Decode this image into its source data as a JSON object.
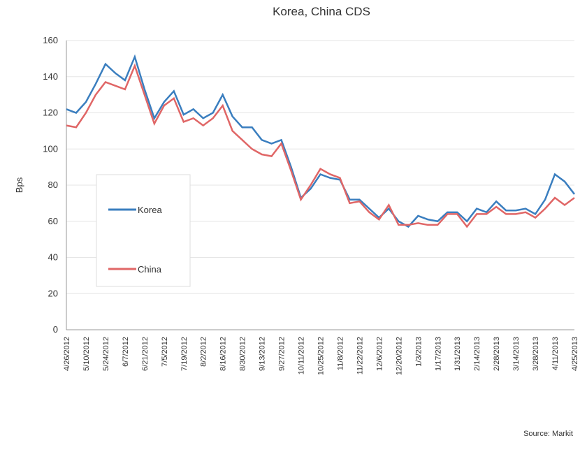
{
  "chart_data": {
    "type": "line",
    "title": "Korea, China CDS",
    "y_label": "Bps",
    "source": "Source: Markit",
    "categories": [
      "4/26/2012",
      null,
      "5/10/2012",
      null,
      "5/24/2012",
      null,
      "6/7/2012",
      null,
      "6/21/2012",
      null,
      "7/5/2012",
      null,
      "7/19/2012",
      null,
      "8/2/2012",
      null,
      "8/16/2012",
      null,
      "8/30/2012",
      null,
      "9/13/2012",
      null,
      "9/27/2012",
      null,
      "10/11/2012",
      null,
      "10/25/2012",
      null,
      "11/8/2012",
      null,
      "11/22/2012",
      null,
      "12/6/2012",
      null,
      "12/20/2012",
      null,
      "1/3/2013",
      null,
      "1/17/2013",
      null,
      "1/31/2013",
      null,
      "2/14/2013",
      null,
      "2/28/2013",
      null,
      "3/14/2013",
      null,
      "3/28/2013",
      null,
      "4/11/2013",
      null,
      "4/25/2013"
    ],
    "series": [
      {
        "name": "Korea",
        "color": "#3a7ebf",
        "values": [
          122,
          120,
          126,
          136,
          147,
          142,
          138,
          151,
          133,
          117,
          126,
          132,
          119,
          122,
          117,
          120,
          130,
          118,
          112,
          112,
          105,
          103,
          105,
          90,
          73,
          78,
          86,
          84,
          83,
          72,
          72,
          67,
          62,
          67,
          60,
          57,
          63,
          61,
          60,
          65,
          65,
          60,
          67,
          65,
          71,
          66,
          66,
          67,
          64,
          72,
          86,
          82,
          75
        ]
      },
      {
        "name": "China",
        "color": "#e06666",
        "values": [
          113,
          112,
          120,
          130,
          137,
          135,
          133,
          146,
          130,
          114,
          124,
          128,
          115,
          117,
          113,
          117,
          124,
          110,
          105,
          100,
          97,
          96,
          103,
          88,
          72,
          80,
          89,
          86,
          84,
          70,
          71,
          65,
          61,
          69,
          58,
          58,
          59,
          58,
          58,
          64,
          64,
          57,
          64,
          64,
          68,
          64,
          64,
          65,
          62,
          67,
          73,
          69,
          73
        ]
      }
    ],
    "ylim": [
      0,
      160
    ],
    "yticks": [
      0,
      20,
      40,
      60,
      80,
      100,
      120,
      140,
      160
    ],
    "grid": true,
    "legend": "left"
  }
}
